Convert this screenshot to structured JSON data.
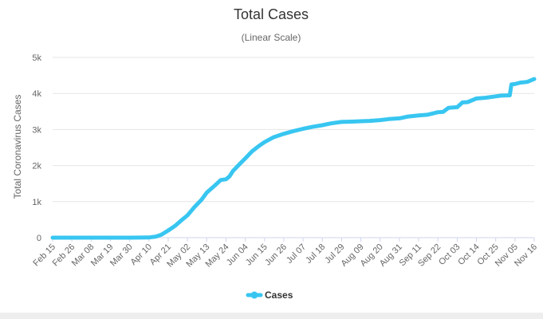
{
  "chart_data": {
    "type": "line",
    "title": "Total Cases",
    "subtitle": "(Linear Scale)",
    "xlabel": "",
    "ylabel": "Total Coronavirus Cases",
    "ylim": [
      0,
      5000
    ],
    "yticks": [
      0,
      1000,
      2000,
      3000,
      4000,
      5000
    ],
    "ytick_labels": [
      "0",
      "1k",
      "2k",
      "3k",
      "4k",
      "5k"
    ],
    "xtick_labels": [
      "Feb 15",
      "Feb 26",
      "Mar 08",
      "Mar 19",
      "Mar 30",
      "Apr 10",
      "Apr 21",
      "May 02",
      "May 13",
      "May 24",
      "Jun 04",
      "Jun 15",
      "Jun 26",
      "Jul 07",
      "Jul 18",
      "Jul 29",
      "Aug 09",
      "Aug 20",
      "Aug 31",
      "Sep 11",
      "Sep 22",
      "Oct 03",
      "Oct 14",
      "Oct 25",
      "Nov 05",
      "Nov 16"
    ],
    "grid": true,
    "legend_position": "bottom-center",
    "series": [
      {
        "name": "Cases",
        "color": "#38c6f1",
        "x": [
          "Feb 15",
          "Feb 26",
          "Mar 08",
          "Mar 19",
          "Mar 30",
          "Apr 10",
          "Apr 14",
          "Apr 17",
          "Apr 21",
          "Apr 25",
          "Apr 29",
          "May 02",
          "May 06",
          "May 10",
          "May 13",
          "May 17",
          "May 21",
          "May 24",
          "May 26",
          "May 28",
          "Jun 01",
          "Jun 04",
          "Jun 08",
          "Jun 12",
          "Jun 15",
          "Jun 20",
          "Jun 26",
          "Jul 01",
          "Jul 07",
          "Jul 12",
          "Jul 18",
          "Jul 23",
          "Jul 29",
          "Aug 04",
          "Aug 09",
          "Aug 14",
          "Aug 20",
          "Aug 25",
          "Aug 31",
          "Sep 05",
          "Sep 11",
          "Sep 16",
          "Sep 22",
          "Sep 25",
          "Sep 28",
          "Oct 03",
          "Oct 06",
          "Oct 09",
          "Oct 14",
          "Oct 19",
          "Oct 25",
          "Oct 28",
          "Nov 02",
          "Nov 03",
          "Nov 05",
          "Nov 08",
          "Nov 12",
          "Nov 16"
        ],
        "values": [
          0,
          0,
          0,
          0,
          0,
          5,
          30,
          80,
          200,
          330,
          500,
          620,
          850,
          1050,
          1250,
          1420,
          1600,
          1620,
          1700,
          1850,
          2050,
          2200,
          2400,
          2550,
          2650,
          2780,
          2880,
          2950,
          3020,
          3070,
          3120,
          3170,
          3210,
          3220,
          3230,
          3240,
          3260,
          3290,
          3310,
          3360,
          3390,
          3410,
          3480,
          3490,
          3600,
          3620,
          3750,
          3760,
          3860,
          3880,
          3920,
          3940,
          3950,
          4250,
          4260,
          4300,
          4320,
          4400
        ]
      }
    ]
  }
}
